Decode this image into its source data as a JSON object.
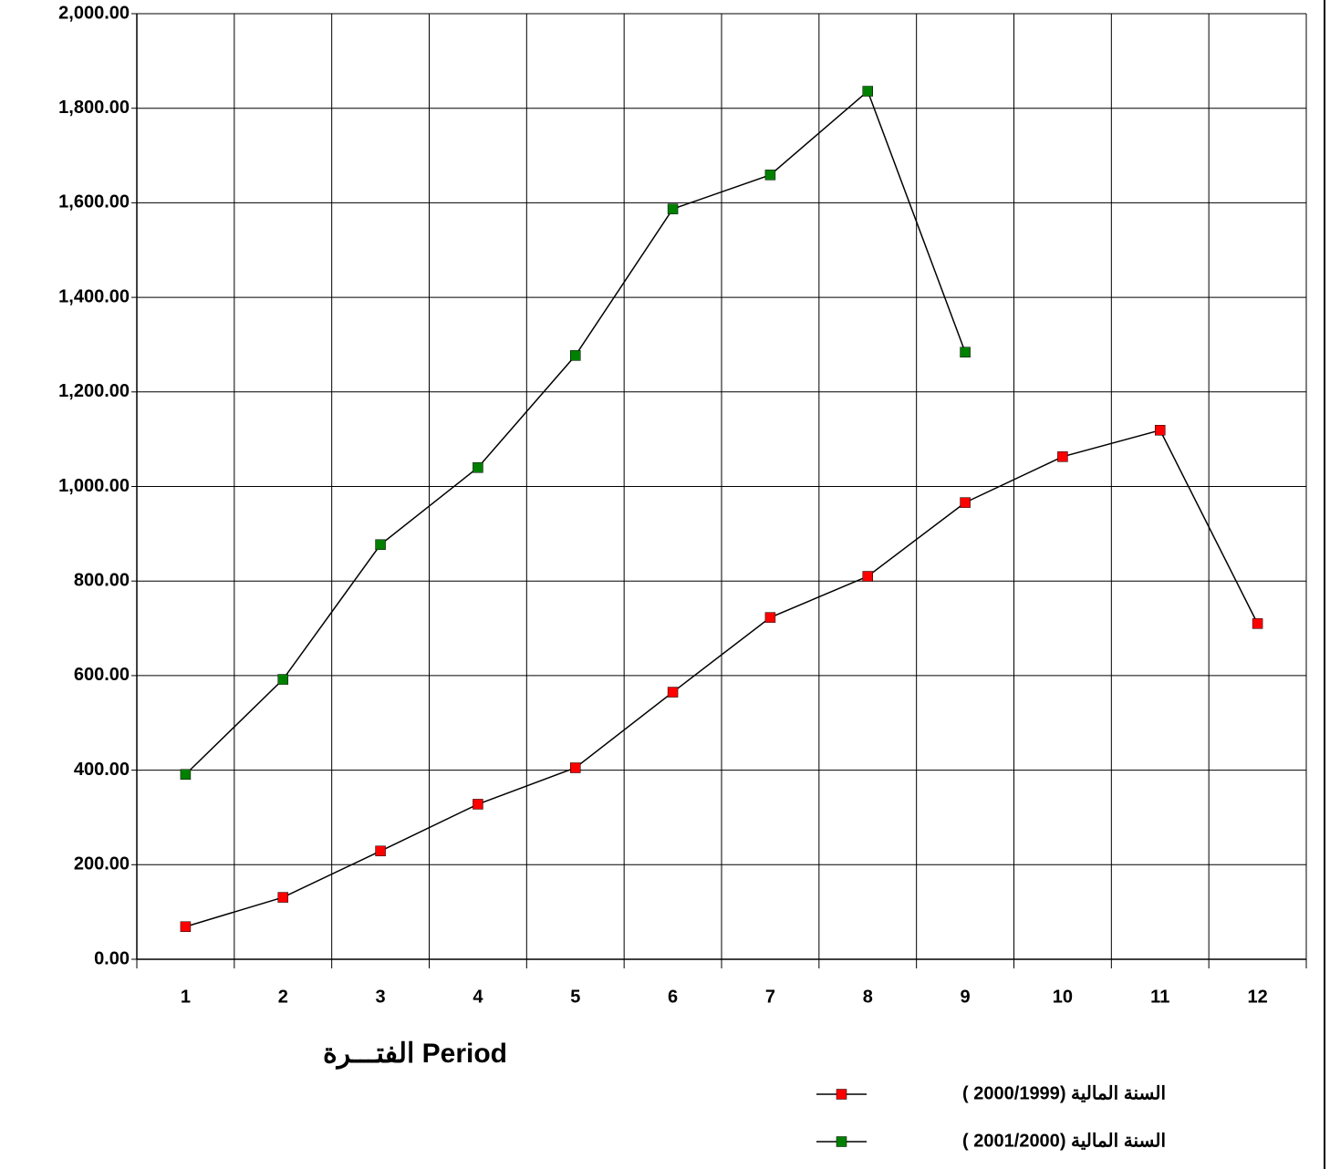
{
  "chart_data": {
    "type": "line",
    "x_label": "الفتـــرة Period",
    "categories": [
      "1",
      "2",
      "3",
      "4",
      "5",
      "6",
      "7",
      "8",
      "9",
      "10",
      "11",
      "12"
    ],
    "series": [
      {
        "name": "السنة المالية (2000/1999 )",
        "color": "#ff0000",
        "values": [
          69,
          131,
          229,
          328,
          405,
          565,
          723,
          810,
          966,
          1063,
          1119,
          710
        ]
      },
      {
        "name": "السنة المالية (2001/2000 )",
        "color": "#008000",
        "values": [
          391,
          592,
          877,
          1040,
          1277,
          1587,
          1659,
          1836,
          1284,
          null,
          null,
          null
        ]
      }
    ],
    "ylim": [
      0,
      2000
    ],
    "yticks": [
      {
        "value": 0,
        "label": "0.00"
      },
      {
        "value": 200,
        "label": "200.00"
      },
      {
        "value": 400,
        "label": "400.00"
      },
      {
        "value": 600,
        "label": "600.00"
      },
      {
        "value": 800,
        "label": "800.00"
      },
      {
        "value": 1000,
        "label": "1,000.00"
      },
      {
        "value": 1200,
        "label": "1,200.00"
      },
      {
        "value": 1400,
        "label": "1,400.00"
      },
      {
        "value": 1600,
        "label": "1,600.00"
      },
      {
        "value": 1800,
        "label": "1,800.00"
      },
      {
        "value": 2000,
        "label": "2,000.00"
      }
    ],
    "grid": true
  }
}
